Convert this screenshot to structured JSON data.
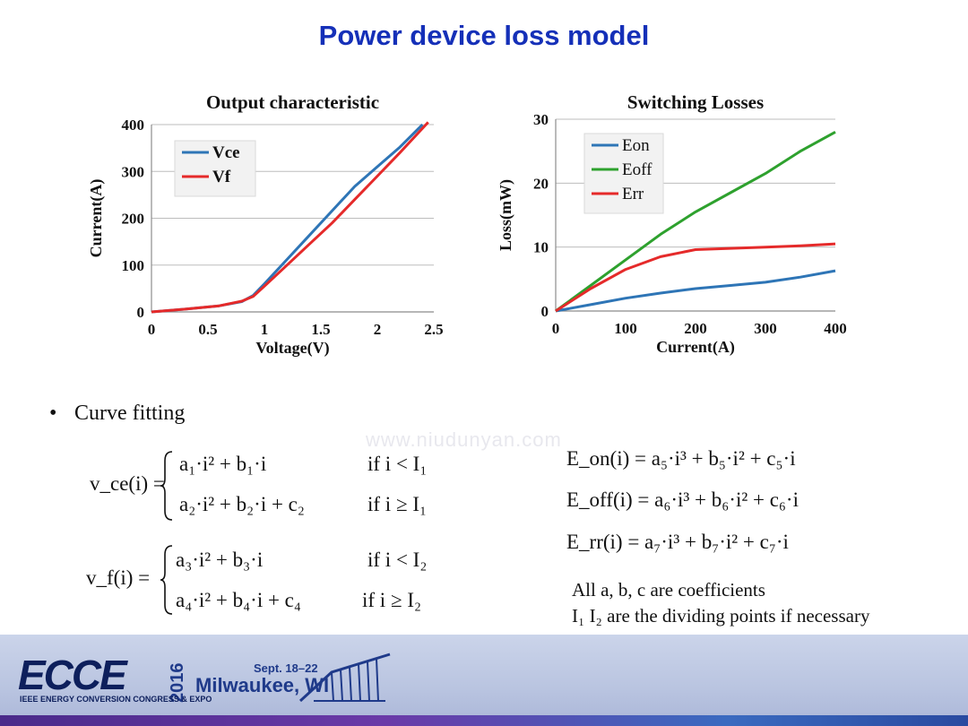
{
  "title": "Power device loss model",
  "chart_data": [
    {
      "type": "line",
      "title": "Output characteristic",
      "xlabel": "Voltage(V)",
      "ylabel": "Current(A)",
      "xlim": [
        0,
        2.5
      ],
      "ylim": [
        0,
        400
      ],
      "xticks": [
        "0",
        "0.5",
        "1",
        "1.5",
        "2",
        "2.5"
      ],
      "yticks": [
        "0",
        "100",
        "200",
        "300",
        "400"
      ],
      "grid": "horizontal",
      "legend": "top-left",
      "series": [
        {
          "name": "Vce",
          "color": "#2e75b6",
          "x": [
            0,
            0.3,
            0.6,
            0.8,
            0.9,
            1.0,
            1.2,
            1.4,
            1.6,
            1.8,
            2.0,
            2.2,
            2.4
          ],
          "y": [
            0,
            6,
            13,
            22,
            35,
            60,
            112,
            164,
            216,
            268,
            310,
            352,
            400
          ]
        },
        {
          "name": "Vf",
          "color": "#e52a2a",
          "x": [
            0,
            0.3,
            0.6,
            0.8,
            0.9,
            1.0,
            1.2,
            1.4,
            1.6,
            1.8,
            2.0,
            2.2,
            2.45
          ],
          "y": [
            0,
            6,
            13,
            23,
            33,
            55,
            100,
            145,
            190,
            240,
            290,
            340,
            405
          ]
        }
      ]
    },
    {
      "type": "line",
      "title": "Switching Losses",
      "xlabel": "Current(A)",
      "ylabel": "Loss(mW)",
      "xlim": [
        0,
        400
      ],
      "ylim": [
        0,
        30
      ],
      "xticks": [
        "0",
        "100",
        "200",
        "300",
        "400"
      ],
      "yticks": [
        "0",
        "10",
        "20",
        "30"
      ],
      "grid": "horizontal",
      "legend": "top-left",
      "series": [
        {
          "name": "Eon",
          "color": "#2e75b6",
          "x": [
            0,
            50,
            100,
            150,
            200,
            250,
            300,
            350,
            400
          ],
          "y": [
            0,
            1,
            2,
            2.8,
            3.5,
            4,
            4.5,
            5.3,
            6.3
          ]
        },
        {
          "name": "Eoff",
          "color": "#2ea12e",
          "x": [
            0,
            50,
            100,
            150,
            200,
            250,
            300,
            350,
            400
          ],
          "y": [
            0,
            4,
            8,
            12,
            15.5,
            18.5,
            21.5,
            25,
            28
          ]
        },
        {
          "name": "Err",
          "color": "#e52a2a",
          "x": [
            0,
            50,
            100,
            150,
            200,
            250,
            300,
            350,
            400
          ],
          "y": [
            0,
            3.5,
            6.5,
            8.5,
            9.6,
            9.8,
            10,
            10.2,
            10.5
          ]
        }
      ]
    }
  ],
  "watermark": "www.niudunyan.com",
  "bullet": {
    "symbol": "•",
    "text": "Curve fitting"
  },
  "formulas": {
    "vce_lhs": "v_ce(i) =",
    "vce_1": "a₁·i² + b₁·i",
    "vce_1_cond": "if   i < I₁",
    "vce_2": "a₂·i² + b₂·i + c₂",
    "vce_2_cond": "if   i ≥ I₁",
    "vf_lhs": "v_f(i) =",
    "vf_1": "a₃·i² + b₃·i",
    "vf_1_cond": "if   i < I₂",
    "vf_2": "a₄·i² + b₄·i + c₄",
    "vf_2_cond": "if   i ≥ I₂",
    "eon": "E_on(i) = a₅·i³ + b₅·i² + c₅·i",
    "eoff": "E_off(i) = a₆·i³ + b₆·i² + c₆·i",
    "err": "E_rr(i) = a₇·i³ + b₇·i² + c₇·i"
  },
  "notes": {
    "line1": "All a, b, c are coefficients",
    "line2": "I₁ I₂ are the dividing points if necessary"
  },
  "footer": {
    "logo_text": "ECCE",
    "year": "2016",
    "subtitle": "IEEE ENERGY CONVERSION CONGRESS & EXPO",
    "dates": "Sept. 18–22",
    "city": "Milwaukee, WI",
    "colors": {
      "dark": "#0d1f5c",
      "accent": "#1f3a8a"
    }
  }
}
